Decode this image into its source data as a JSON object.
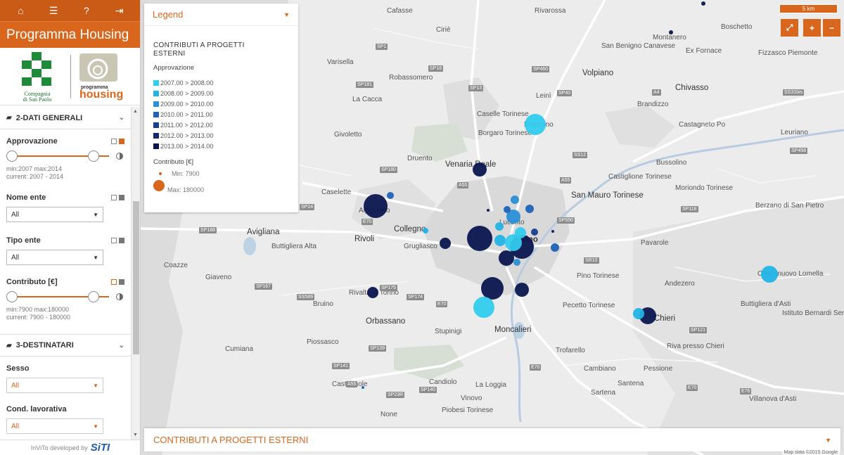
{
  "app": {
    "title": "Programma Housing"
  },
  "topbar": {
    "icons": [
      "home-icon",
      "list-icon",
      "help-icon",
      "logout-icon"
    ]
  },
  "logos": {
    "left_text_1": "Compagnia",
    "left_text_2": "di San Paolo",
    "right_text_1": "programma",
    "right_text_2": "housing"
  },
  "sections": {
    "dati_generali": {
      "label": "2-DATI GENERALI"
    },
    "destinatari": {
      "label": "3-DESTINATARI"
    }
  },
  "filters": {
    "approvazione": {
      "label": "Approvazione",
      "minmax": "min:2007 max:2014",
      "current": "current: 2007 - 2014",
      "min": 2007,
      "max": 2014
    },
    "nome_ente": {
      "label": "Nome ente",
      "value": "All"
    },
    "tipo_ente": {
      "label": "Tipo ente",
      "value": "All"
    },
    "contributo": {
      "label": "Contributo [€]",
      "minmax": "min:7900 max:180000",
      "current": "current: 7900 - 180000",
      "min": 7900,
      "max": 180000
    },
    "sesso": {
      "label": "Sesso",
      "value": "All"
    },
    "cond_lavorativa": {
      "label": "Cond. lavorativa",
      "value": "All"
    }
  },
  "footer": {
    "text": "InViTo developed by",
    "brand": "SiTI"
  },
  "legend": {
    "header": "Legend",
    "title": "CONTRIBUTI A PROGETTI ESTERNI",
    "approvazione_label": "Approvazione",
    "classes": [
      {
        "label": "2007.00 > 2008.00",
        "color": "#33ccee"
      },
      {
        "label": "2008.00 > 2009.00",
        "color": "#22b4e6"
      },
      {
        "label": "2009.00 > 2010.00",
        "color": "#2a8fd6"
      },
      {
        "label": "2010.00 > 2011.00",
        "color": "#1f63b8"
      },
      {
        "label": "2011.00 > 2012.00",
        "color": "#183f8e"
      },
      {
        "label": "2012.00 > 2013.00",
        "color": "#122a6e"
      },
      {
        "label": "2013.00 > 2014.00",
        "color": "#0b1650"
      }
    ],
    "contributo_label": "Contributo [€]",
    "min_label": "Min: 7900",
    "max_label": "Max: 180000",
    "size_color": "#d8661d"
  },
  "map": {
    "scale_label": "5 km",
    "controls": {
      "fullscreen": "⤢",
      "zoom_in": "+",
      "zoom_out": "−"
    },
    "bottom_panel_title": "CONTRIBUTI A PROGETTI ESTERNI",
    "attribution": "Map data ©2015 Google",
    "places": [
      "Cafasse",
      "Rivarossa",
      "Boschetto",
      "Ciriè",
      "Montanero",
      "San Benigno Canavese",
      "Ex Fornace",
      "Fizzasco Piemonte",
      "Varisella",
      "Robassomero",
      "Volpiano",
      "Chivasso",
      "La Cacca",
      "Leinì",
      "Brandizzo",
      "Caselle Torinese",
      "Castagneto Po",
      "Givoletto",
      "Mappano",
      "Borgaro Torinese",
      "Druento",
      "Venaria Reale",
      "Bussolino",
      "Castiglione Torinese",
      "Caselette",
      "San Mauro Torinese",
      "Alpignano",
      "Avigliana",
      "Collegno",
      "Grugliasco",
      "Rivoli",
      "Buttigliera Alta",
      "Pavarole",
      "Coazze",
      "Giaveno",
      "Pino Torinese",
      "Andezero",
      "Castelnuovo Lomella",
      "Bruino",
      "Rivalta di Torino",
      "Orbassano",
      "Pecetto Torinese",
      "Buttigliera d'Asti",
      "Istituto Bernardi Semeria",
      "Stupinigi",
      "Moncalieri",
      "Trofarello",
      "Riva presso Chieri",
      "Piossasco",
      "Cumiana",
      "Cambiano",
      "Pessione",
      "Candiolo",
      "La Loggia",
      "Castagnole",
      "Sartena",
      "Vinovo",
      "Villanova d'Asti",
      "Piobesi Torinese",
      "None",
      "Torino",
      "Chieri",
      "Santena",
      "Lucento",
      "Leuriano",
      "Berzano di San Pietro",
      "Moriondo Torinese"
    ]
  }
}
